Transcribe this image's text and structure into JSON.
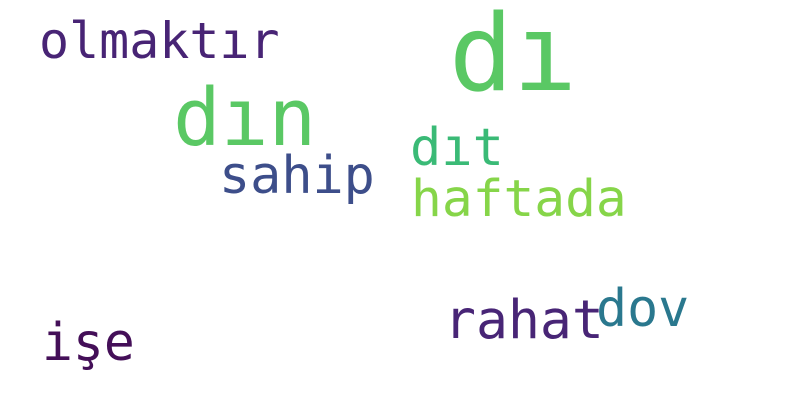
{
  "word_cloud": {
    "words": [
      {
        "text": "dı",
        "color": "#5ac864"
      },
      {
        "text": "olmaktır",
        "color": "#482475"
      },
      {
        "text": "dın",
        "color": "#5ac864"
      },
      {
        "text": "dıt",
        "color": "#3aba76"
      },
      {
        "text": "sahip",
        "color": "#3d4e8a"
      },
      {
        "text": "haftada",
        "color": "#86d549"
      },
      {
        "text": "rahat",
        "color": "#482576"
      },
      {
        "text": "dov",
        "color": "#2a788e"
      },
      {
        "text": "işe",
        "color": "#440f58"
      }
    ]
  }
}
